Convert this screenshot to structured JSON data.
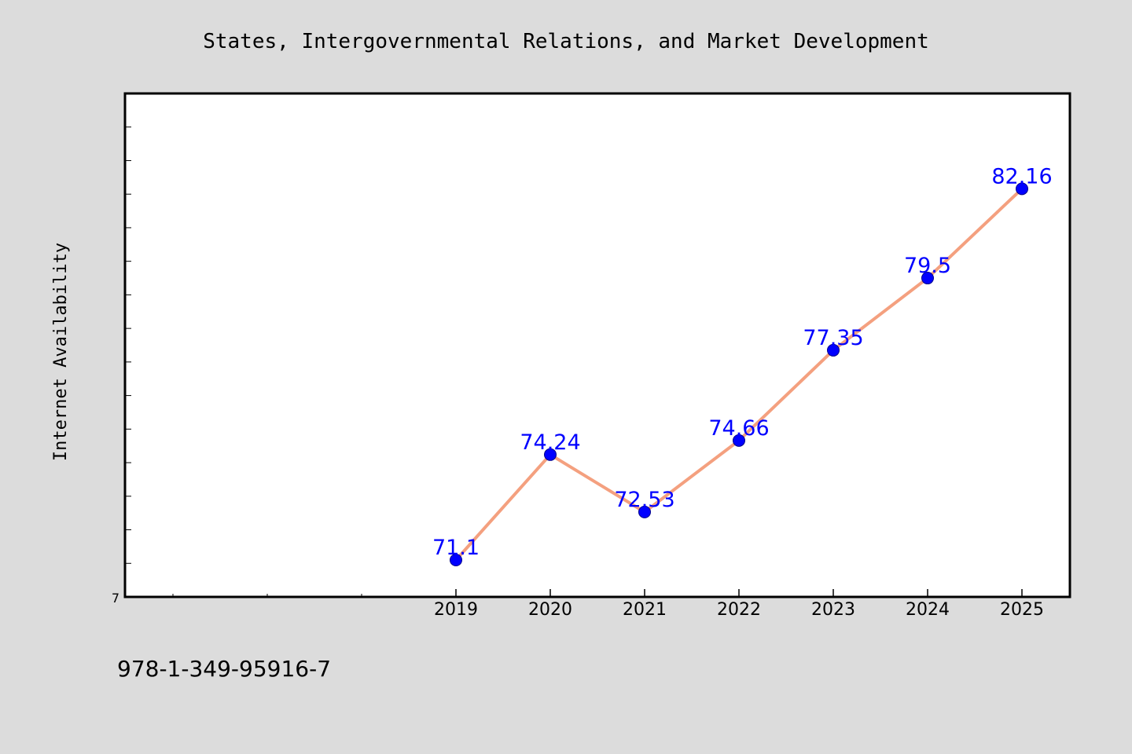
{
  "chart_data": {
    "type": "line",
    "title": "States, Intergovernmental Relations, and Market Development",
    "ylabel": "Internet Availability",
    "xlabel": "",
    "x": [
      "2019",
      "2020",
      "2021",
      "2022",
      "2023",
      "2024",
      "2025"
    ],
    "series": [
      {
        "values": [
          71.1,
          74.24,
          72.53,
          74.66,
          77.35,
          79.5,
          82.16
        ],
        "labels": [
          "71.1",
          "74.24",
          "72.53",
          "74.66",
          "77.35",
          "79.5",
          "82.16"
        ]
      }
    ],
    "ylim": [
      70.0,
      85.0
    ],
    "y_tick_label": "7",
    "grid": false,
    "colors": {
      "line": "#f4a07f",
      "marker": "#0000ff",
      "label": "#0000ff",
      "background": "#dcdcdc",
      "plot_background": "#ffffff"
    },
    "footnote": "978-1-349-95916-7"
  }
}
